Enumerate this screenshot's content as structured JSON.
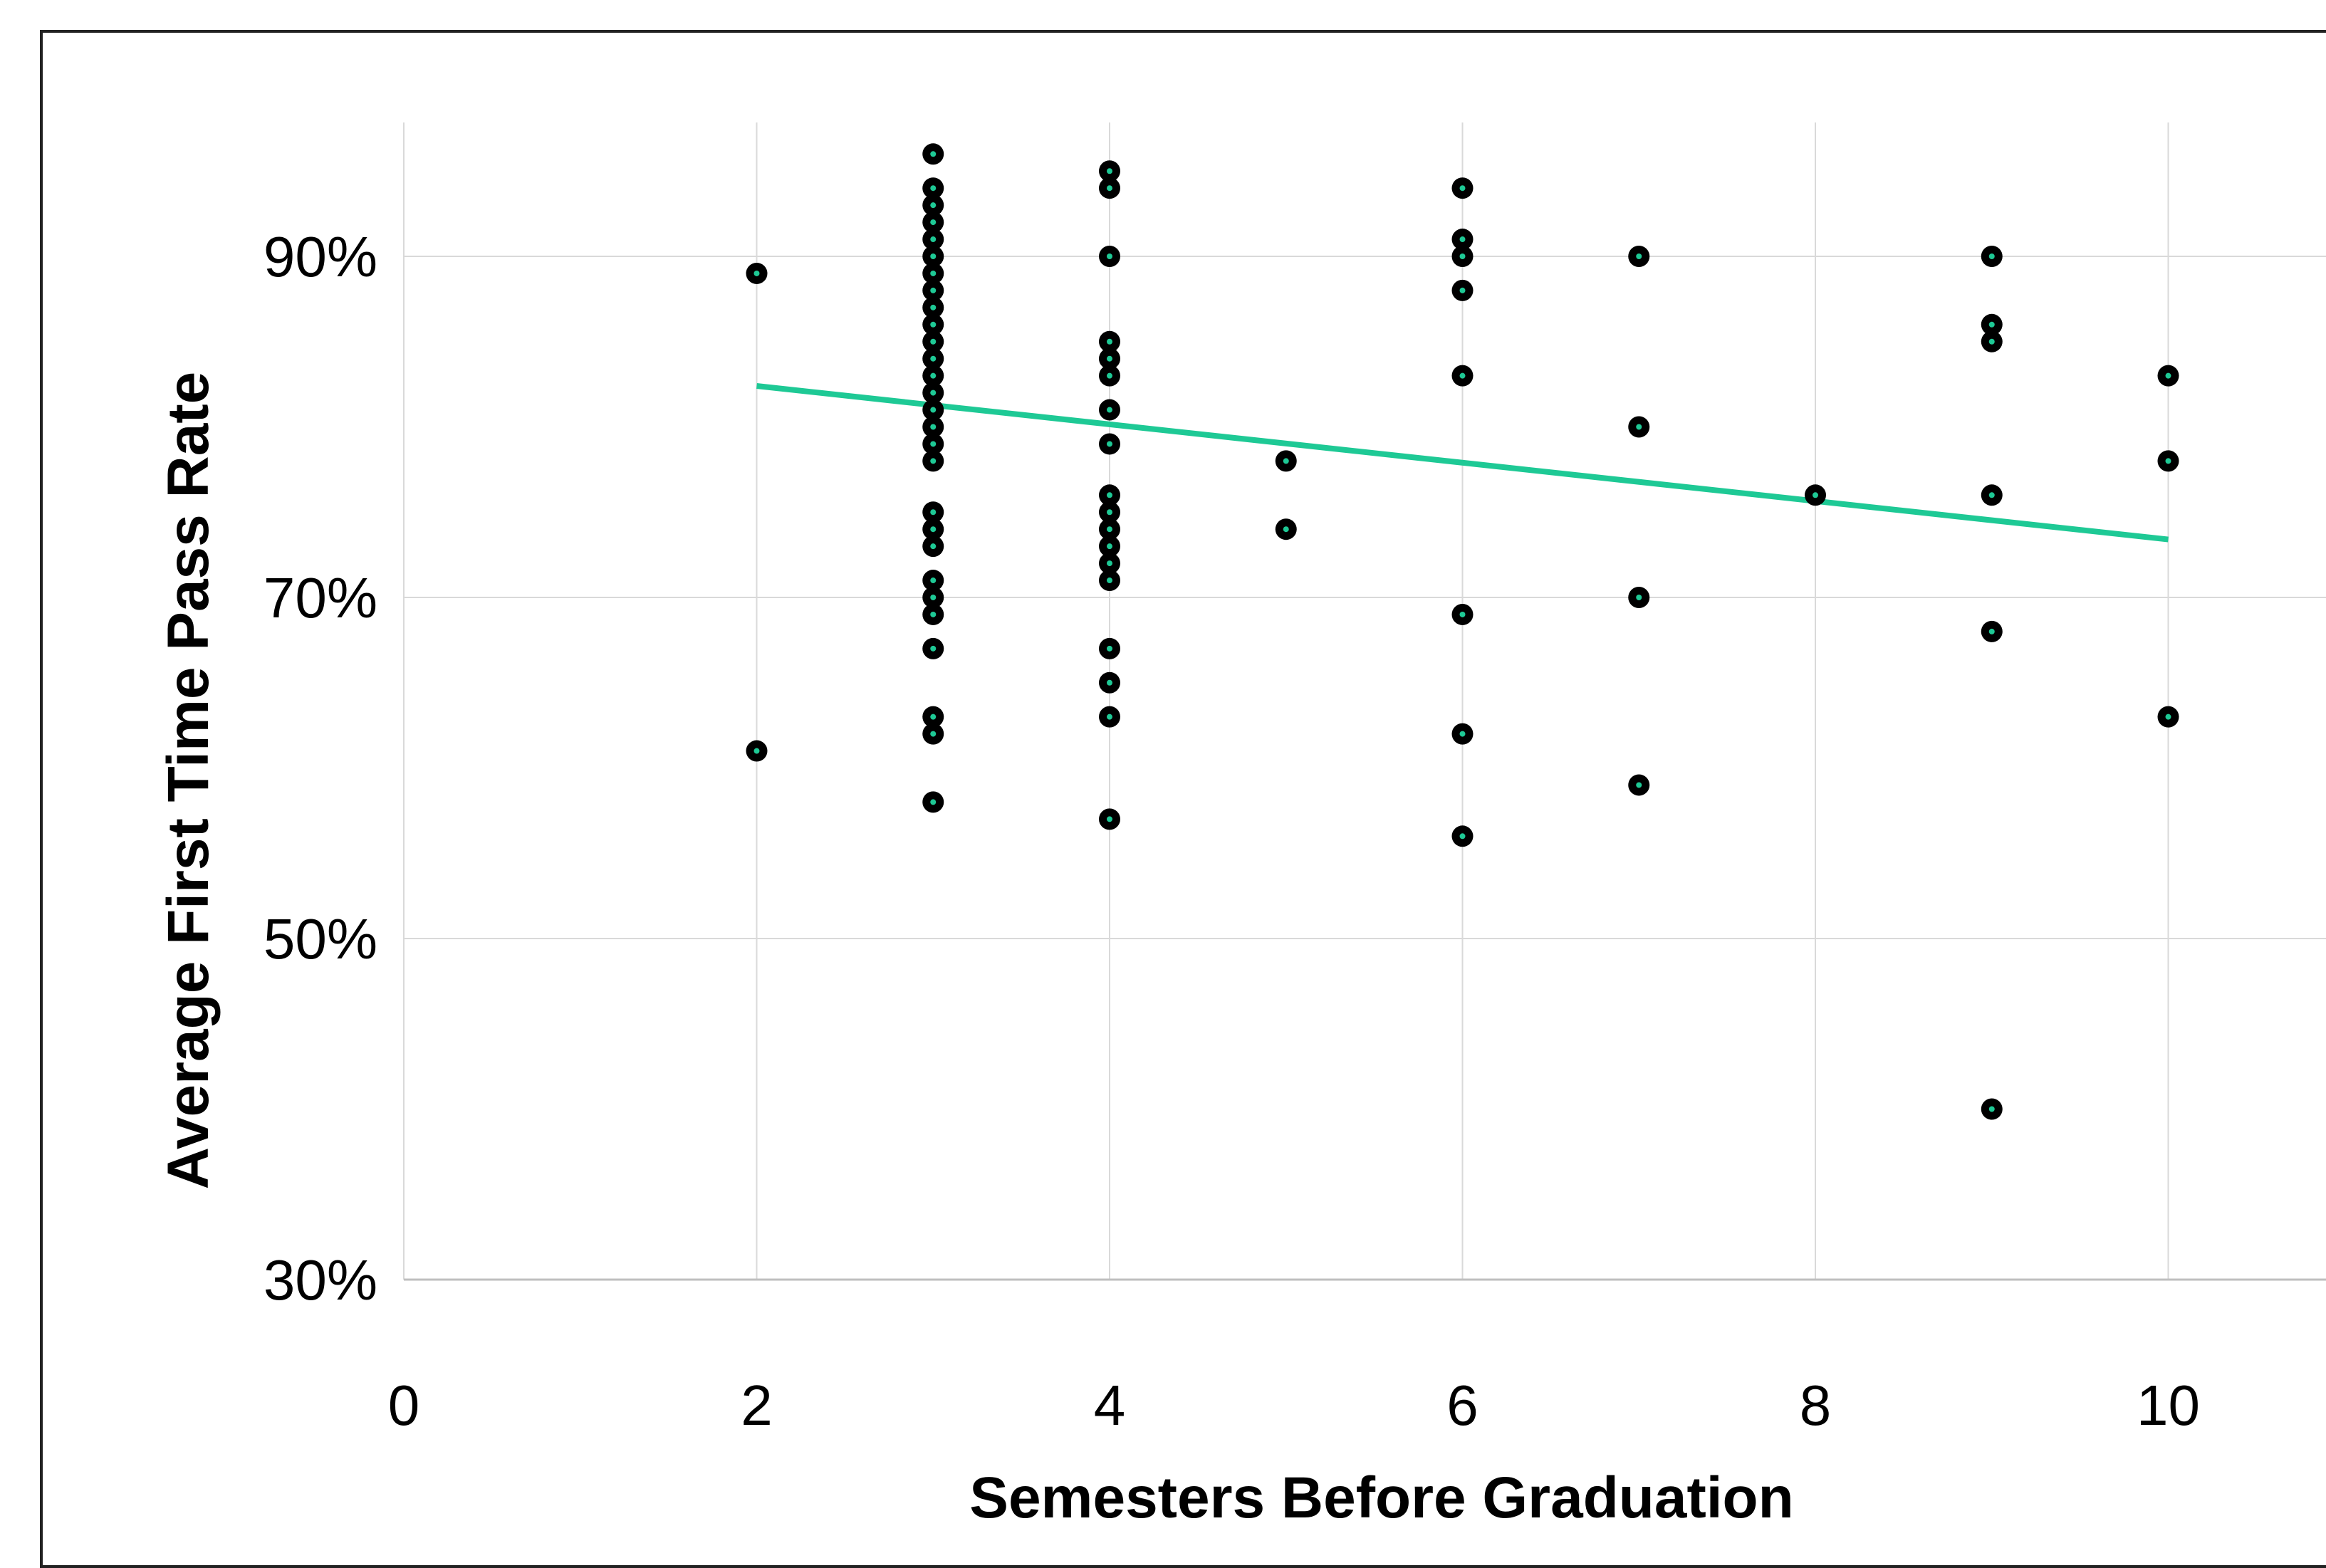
{
  "chart_data": {
    "type": "scatter",
    "title": "",
    "xlabel": "Semesters Before Graduation",
    "ylabel": "Average First Time Pass Rate",
    "xlim": [
      0,
      11.3
    ],
    "ylim": [
      30,
      100
    ],
    "x_ticks": [
      0,
      2,
      4,
      6,
      8,
      10
    ],
    "y_ticks": [
      30,
      50,
      70,
      90
    ],
    "x_tick_labels": [
      "0",
      "2",
      "4",
      "6",
      "8",
      "10"
    ],
    "y_tick_labels": [
      "30%",
      "50%",
      "70%",
      "90%"
    ],
    "grid": true,
    "legend": "none",
    "colors": {
      "point_fill": "#000000",
      "point_center": "#1ec995",
      "trendline": "#1ec995",
      "grid": "#d9d9d9"
    },
    "trendline": {
      "x": [
        2,
        10
      ],
      "y": [
        82.4,
        73.4
      ]
    },
    "points": [
      [
        2,
        89
      ],
      [
        2,
        61
      ],
      [
        3,
        96
      ],
      [
        3,
        94
      ],
      [
        3,
        93
      ],
      [
        3,
        92
      ],
      [
        3,
        91
      ],
      [
        3,
        90
      ],
      [
        3,
        89
      ],
      [
        3,
        88
      ],
      [
        3,
        87
      ],
      [
        3,
        86
      ],
      [
        3,
        85
      ],
      [
        3,
        84
      ],
      [
        3,
        83
      ],
      [
        3,
        82
      ],
      [
        3,
        81
      ],
      [
        3,
        80
      ],
      [
        3,
        79
      ],
      [
        3,
        78
      ],
      [
        3,
        75
      ],
      [
        3,
        74
      ],
      [
        3,
        73
      ],
      [
        3,
        71
      ],
      [
        3,
        70
      ],
      [
        3,
        69
      ],
      [
        3,
        67
      ],
      [
        3,
        63
      ],
      [
        3,
        62
      ],
      [
        3,
        58
      ],
      [
        4,
        95
      ],
      [
        4,
        94
      ],
      [
        4,
        90
      ],
      [
        4,
        85
      ],
      [
        4,
        84
      ],
      [
        4,
        83
      ],
      [
        4,
        81
      ],
      [
        4,
        79
      ],
      [
        4,
        76
      ],
      [
        4,
        75
      ],
      [
        4,
        74
      ],
      [
        4,
        73
      ],
      [
        4,
        72
      ],
      [
        4,
        71
      ],
      [
        4,
        67
      ],
      [
        4,
        65
      ],
      [
        4,
        63
      ],
      [
        4,
        57
      ],
      [
        5,
        78
      ],
      [
        5,
        74
      ],
      [
        6,
        94
      ],
      [
        6,
        91
      ],
      [
        6,
        90
      ],
      [
        6,
        88
      ],
      [
        6,
        83
      ],
      [
        6,
        69
      ],
      [
        6,
        62
      ],
      [
        6,
        56
      ],
      [
        7,
        90
      ],
      [
        7,
        80
      ],
      [
        7,
        70
      ],
      [
        7,
        59
      ],
      [
        8,
        76
      ],
      [
        9,
        90
      ],
      [
        9,
        86
      ],
      [
        9,
        85
      ],
      [
        9,
        76
      ],
      [
        9,
        68
      ],
      [
        9,
        40
      ],
      [
        10,
        83
      ],
      [
        10,
        78
      ],
      [
        10,
        63
      ]
    ]
  }
}
